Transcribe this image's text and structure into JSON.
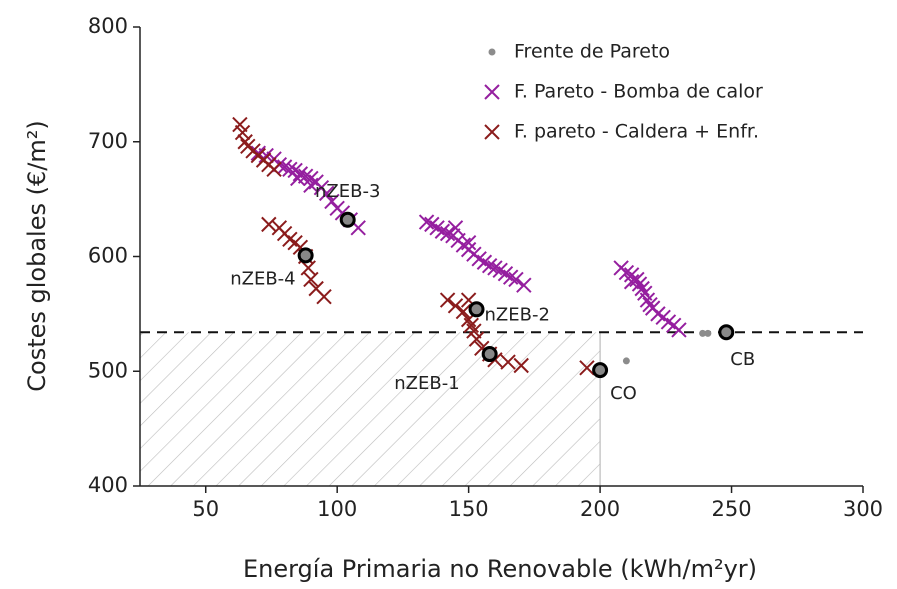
{
  "chart_data": {
    "type": "scatter",
    "x_label": "Energía Primaria no Renovable (kWh/m²yr)",
    "y_label": "Costes globales (€/m²)",
    "xlim": [
      25,
      300
    ],
    "xticks": [
      50,
      100,
      150,
      200,
      250,
      300
    ],
    "ylim": [
      400,
      800
    ],
    "yticks": [
      400,
      500,
      600,
      700,
      800
    ],
    "legend": "top-right",
    "reference_line": {
      "y": 534
    },
    "shaded_region": {
      "xmax": 200,
      "ymax": 534
    },
    "series": [
      {
        "name": "Frente de Pareto",
        "color": "#8c8c8c",
        "marker": "dot",
        "x": [
          210,
          239,
          241
        ],
        "values": [
          509,
          533,
          533
        ]
      },
      {
        "name": "F. Pareto - Bomba de calor",
        "color": "#951f9f",
        "marker": "x",
        "x": [
          70,
          73,
          76,
          78,
          80,
          82,
          84,
          86,
          88,
          90,
          92,
          94,
          96,
          98,
          100,
          102,
          105,
          108,
          85,
          90,
          134,
          136,
          138,
          140,
          142,
          144,
          146,
          148,
          150,
          152,
          154,
          156,
          158,
          160,
          162,
          164,
          166,
          168,
          171,
          145,
          150,
          208,
          210,
          212,
          214,
          215,
          216,
          217,
          218,
          219,
          220,
          222,
          224,
          226,
          228,
          230,
          212
        ],
        "values": [
          690,
          688,
          685,
          680,
          678,
          676,
          675,
          672,
          670,
          668,
          665,
          660,
          655,
          648,
          642,
          638,
          632,
          625,
          668,
          662,
          630,
          628,
          625,
          622,
          620,
          618,
          614,
          610,
          606,
          602,
          598,
          595,
          592,
          590,
          588,
          585,
          582,
          580,
          575,
          625,
          612,
          590,
          586,
          584,
          580,
          576,
          572,
          568,
          562,
          558,
          555,
          550,
          547,
          543,
          540,
          536,
          578
        ]
      },
      {
        "name": "F. pareto - Caldera + Enfr.",
        "color": "#8b1c1c",
        "marker": "x",
        "x": [
          63,
          64,
          65,
          66,
          68,
          70,
          72,
          74,
          76,
          74,
          78,
          80,
          82,
          84,
          86,
          88,
          89,
          90,
          92,
          95,
          142,
          145,
          148,
          150,
          151,
          152,
          153,
          155,
          158,
          160,
          165,
          170,
          195,
          150
        ],
        "values": [
          715,
          708,
          700,
          696,
          692,
          688,
          684,
          680,
          676,
          628,
          625,
          620,
          615,
          612,
          608,
          600,
          590,
          580,
          572,
          565,
          562,
          557,
          552,
          545,
          540,
          535,
          528,
          520,
          515,
          510,
          508,
          505,
          503,
          562
        ]
      }
    ],
    "annotations": [
      {
        "text": "nZEB-3",
        "x": 104,
        "y": 632
      },
      {
        "text": "nZEB-4",
        "x": 88,
        "y": 601
      },
      {
        "text": "nZEB-2",
        "x": 153,
        "y": 554
      },
      {
        "text": "nZEB-1",
        "x": 158,
        "y": 515
      },
      {
        "text": "CO",
        "x": 200,
        "y": 501
      },
      {
        "text": "CB",
        "x": 248,
        "y": 534
      }
    ]
  }
}
